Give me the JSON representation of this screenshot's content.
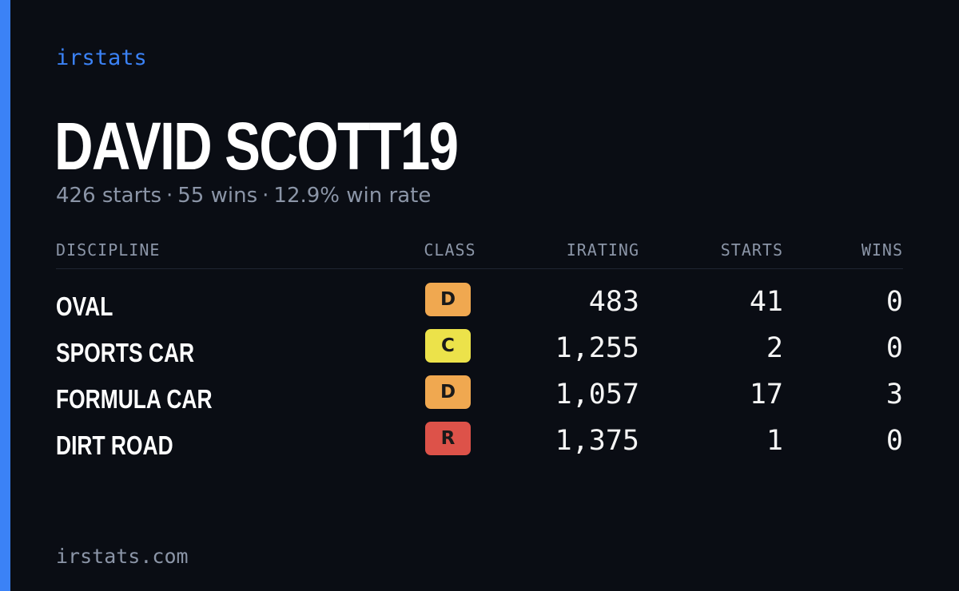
{
  "brand": "irstats",
  "player": {
    "name": "DAVID SCOTT19",
    "starts_text": "426 starts",
    "wins_text": "55 wins",
    "win_rate_text": "12.9% win rate",
    "separator": "·"
  },
  "table": {
    "headers": {
      "discipline": "DISCIPLINE",
      "class": "CLASS",
      "irating": "IRATING",
      "starts": "STARTS",
      "wins": "WINS"
    },
    "rows": [
      {
        "discipline": "OVAL",
        "class": "D",
        "class_color": "#f0a850",
        "irating": "483",
        "starts": "41",
        "wins": "0"
      },
      {
        "discipline": "SPORTS CAR",
        "class": "C",
        "class_color": "#ece24a",
        "irating": "1,255",
        "starts": "2",
        "wins": "0"
      },
      {
        "discipline": "FORMULA CAR",
        "class": "D",
        "class_color": "#f0a850",
        "irating": "1,057",
        "starts": "17",
        "wins": "3"
      },
      {
        "discipline": "DIRT ROAD",
        "class": "R",
        "class_color": "#dd5249",
        "irating": "1,375",
        "starts": "1",
        "wins": "0"
      }
    ]
  },
  "footer": "irstats.com",
  "colors": {
    "accent": "#3b82f6",
    "background": "#0a0d14",
    "muted": "#8b95a7"
  }
}
